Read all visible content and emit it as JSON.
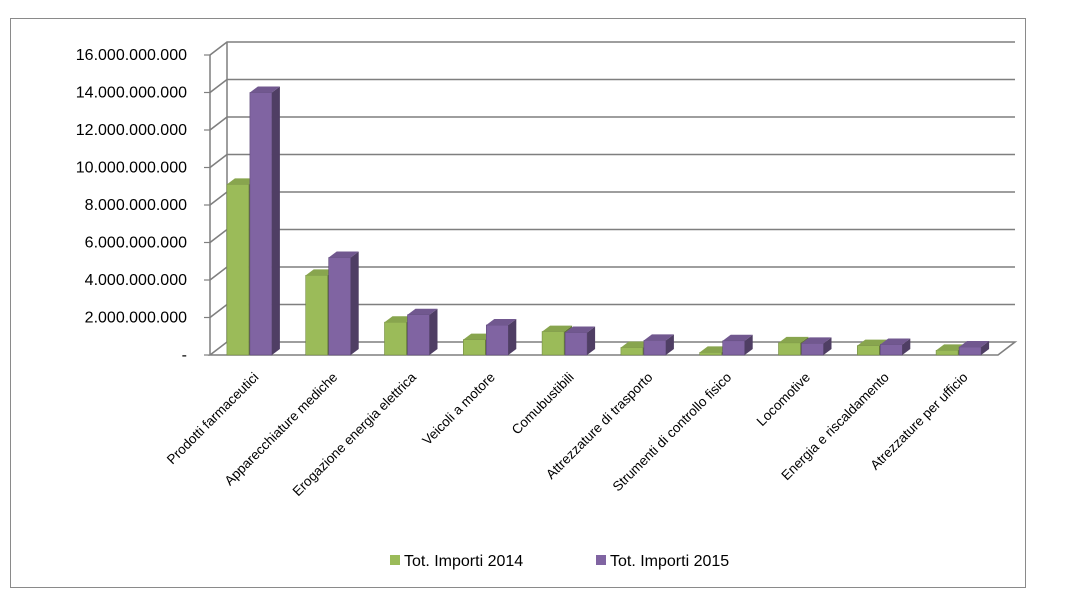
{
  "caption": "",
  "chart_data": {
    "type": "bar",
    "title": "",
    "xlabel": "",
    "ylabel": "",
    "ylim": [
      0,
      16000000000
    ],
    "ytick_values": [
      0,
      2000000000,
      4000000000,
      6000000000,
      8000000000,
      10000000000,
      12000000000,
      14000000000,
      16000000000
    ],
    "ytick_labels": [
      "-",
      "2.000.000.000",
      "4.000.000.000",
      "6.000.000.000",
      "8.000.000.000",
      "10.000.000.000",
      "12.000.000.000",
      "14.000.000.000",
      "16.000.000.000"
    ],
    "categories": [
      "Prodotti farmaceutici",
      "Apparecchiature mediche",
      "Erogazione energia elettrica",
      "Veicoli a motore",
      "Comubustibili",
      "Attrezzature di trasporto",
      "Strumenti di controllo fisico",
      "Locomotive",
      "Energia e riscaldamento",
      "Atrezzature per ufficio"
    ],
    "series": [
      {
        "name": "Tot. Importi 2014",
        "color": "#9BBB59",
        "values": [
          9100000000,
          4250000000,
          1750000000,
          820000000,
          1250000000,
          400000000,
          140000000,
          650000000,
          500000000,
          250000000
        ]
      },
      {
        "name": "Tot. Importi 2015",
        "color": "#8064A2",
        "values": [
          14000000000,
          5200000000,
          2150000000,
          1600000000,
          1200000000,
          780000000,
          760000000,
          620000000,
          560000000,
          430000000
        ]
      }
    ],
    "grid": true,
    "style": "3d-clustered-column",
    "legend_position": "bottom"
  }
}
